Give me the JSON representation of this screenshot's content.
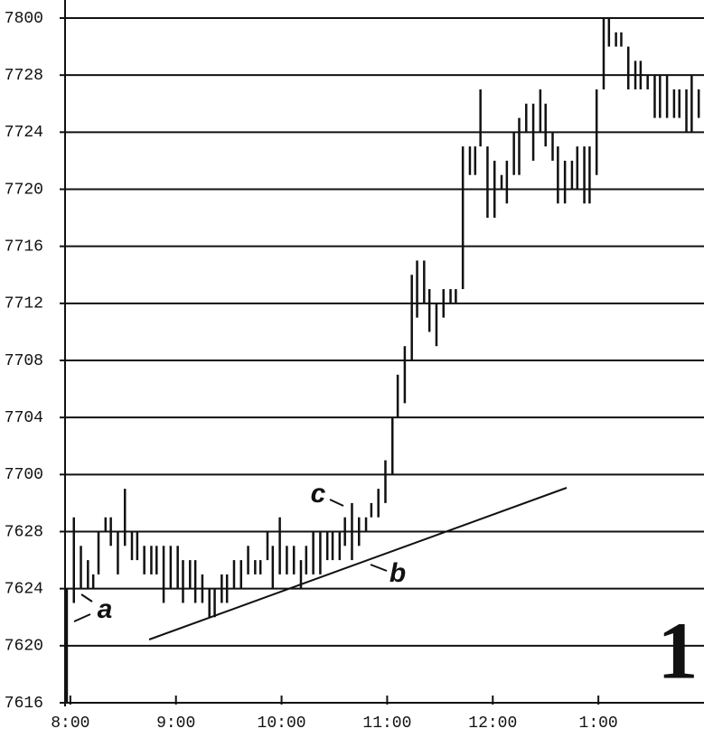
{
  "chart_data": {
    "type": "hilo",
    "color": "#111111",
    "grid": true,
    "xlim": [
      477,
      840
    ],
    "ylim": [
      2448,
      2496
    ],
    "xticks": [
      {
        "value": 480,
        "label": "8:00"
      },
      {
        "value": 540,
        "label": "9:00"
      },
      {
        "value": 600,
        "label": "10:00"
      },
      {
        "value": 660,
        "label": "11:00"
      },
      {
        "value": 720,
        "label": "12:00"
      },
      {
        "value": 780,
        "label": "1:00"
      }
    ],
    "yticks": [
      {
        "value": 2448,
        "label": "7616"
      },
      {
        "value": 2452,
        "label": "7620"
      },
      {
        "value": 2456,
        "label": "7624"
      },
      {
        "value": 2460,
        "label": "7628"
      },
      {
        "value": 2464,
        "label": "7700"
      },
      {
        "value": 2468,
        "label": "7704"
      },
      {
        "value": 2472,
        "label": "7708"
      },
      {
        "value": 2476,
        "label": "7712"
      },
      {
        "value": 2480,
        "label": "7716"
      },
      {
        "value": 2484,
        "label": "7720"
      },
      {
        "value": 2488,
        "label": "7724"
      },
      {
        "value": 2492,
        "label": "7728"
      },
      {
        "value": 2496,
        "label": "7800"
      }
    ],
    "x": [
      478,
      482,
      486,
      490,
      493,
      496,
      500,
      503,
      507,
      511,
      515,
      518,
      522,
      526,
      529,
      533,
      537,
      541,
      544,
      548,
      551,
      555,
      559,
      562,
      566,
      569,
      573,
      577,
      581,
      585,
      588,
      592,
      595,
      599,
      603,
      607,
      611,
      614,
      618,
      622,
      626,
      629,
      633,
      636,
      640,
      644,
      648,
      651,
      655,
      659,
      663,
      666,
      670,
      674,
      677,
      681,
      684,
      688,
      692,
      696,
      699,
      703,
      707,
      710,
      713,
      717,
      721,
      725,
      728,
      732,
      735,
      739,
      743,
      747,
      750,
      754,
      757,
      761,
      765,
      768,
      772,
      775,
      779,
      783,
      786,
      790,
      793,
      797,
      801,
      804,
      808,
      812,
      815,
      819,
      823,
      826,
      830,
      833,
      837
    ],
    "high": [
      2456,
      2461,
      2459,
      2458,
      2457,
      2460,
      2461,
      2461,
      2460,
      2463,
      2460,
      2460,
      2459,
      2459,
      2459,
      2459,
      2459,
      2459,
      2458,
      2458,
      2458,
      2457,
      2456,
      2456,
      2457,
      2457,
      2458,
      2458,
      2459,
      2458,
      2458,
      2460,
      2459,
      2461,
      2459,
      2459,
      2458,
      2459,
      2460,
      2460,
      2460,
      2460,
      2460,
      2461,
      2462,
      2461,
      2461,
      2462,
      2463,
      2465,
      2468,
      2471,
      2473,
      2478,
      2479,
      2479,
      2477,
      2476,
      2477,
      2477,
      2477,
      2487,
      2487,
      2487,
      2491,
      2487,
      2486,
      2485,
      2486,
      2488,
      2489,
      2490,
      2490,
      2491,
      2490,
      2488,
      2487,
      2486,
      2486,
      2487,
      2487,
      2487,
      2491,
      2496,
      2496,
      2495,
      2495,
      2494,
      2493,
      2493,
      2492,
      2492,
      2492,
      2492,
      2491,
      2491,
      2491,
      2492,
      2491
    ],
    "low": [
      2448,
      2455,
      2456,
      2456,
      2456,
      2457,
      2460,
      2459,
      2457,
      2459,
      2458,
      2458,
      2457,
      2457,
      2457,
      2455,
      2456,
      2456,
      2455,
      2456,
      2455,
      2455,
      2454,
      2454,
      2455,
      2455,
      2456,
      2456,
      2457,
      2457,
      2457,
      2458,
      2456,
      2457,
      2457,
      2457,
      2456,
      2457,
      2457,
      2457,
      2458,
      2458,
      2458,
      2459,
      2458,
      2459,
      2460,
      2461,
      2461,
      2462,
      2464,
      2468,
      2469,
      2472,
      2475,
      2476,
      2474,
      2473,
      2475,
      2476,
      2476,
      2477,
      2485,
      2485,
      2487,
      2482,
      2482,
      2484,
      2483,
      2485,
      2485,
      2488,
      2486,
      2488,
      2487,
      2486,
      2483,
      2483,
      2484,
      2484,
      2483,
      2483,
      2485,
      2491,
      2494,
      2494,
      2494,
      2491,
      2491,
      2491,
      2491,
      2489,
      2489,
      2489,
      2489,
      2489,
      2488,
      2488,
      2489
    ],
    "annotations": [
      "a",
      "b",
      "c",
      "1"
    ]
  }
}
